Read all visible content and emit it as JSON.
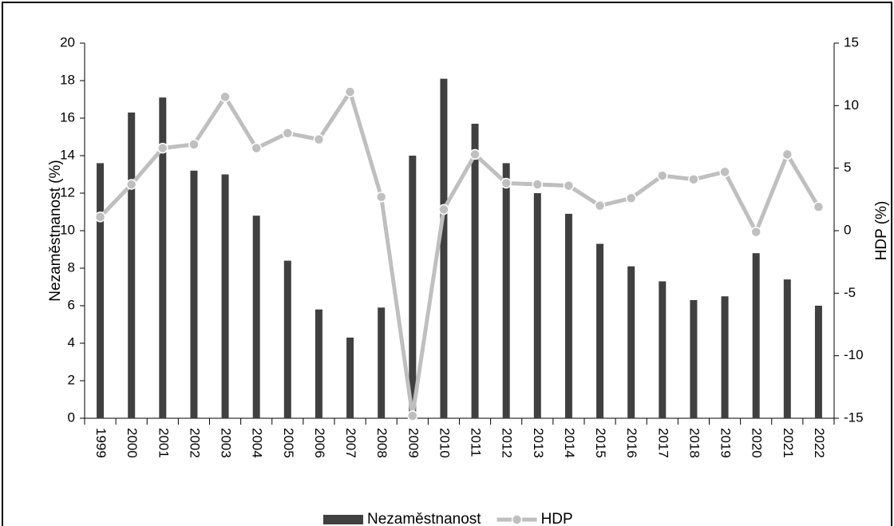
{
  "chart_data": {
    "type": "bar",
    "categories": [
      "1999",
      "2000",
      "2001",
      "2002",
      "2003",
      "2004",
      "2005",
      "2006",
      "2007",
      "2008",
      "2009",
      "2010",
      "2011",
      "2012",
      "2013",
      "2014",
      "2015",
      "2016",
      "2017",
      "2018",
      "2019",
      "2020",
      "2021",
      "2022"
    ],
    "series": [
      {
        "name": "Nezaměstnanost",
        "type": "bar",
        "color": "#404040",
        "values": [
          13.6,
          16.3,
          17.1,
          13.2,
          13.0,
          10.8,
          8.4,
          5.8,
          4.3,
          5.9,
          14.0,
          18.1,
          15.7,
          13.6,
          12.0,
          10.9,
          9.3,
          8.1,
          7.3,
          6.3,
          6.5,
          8.8,
          7.4,
          6.0
        ]
      },
      {
        "name": "HDP",
        "type": "line",
        "axis": "y2",
        "color": "#bfbfbf",
        "values": [
          1.1,
          3.7,
          6.6,
          6.9,
          10.7,
          6.6,
          7.8,
          7.3,
          11.1,
          2.7,
          -14.8,
          1.7,
          6.1,
          3.8,
          3.7,
          3.6,
          2.0,
          2.6,
          4.4,
          4.1,
          4.7,
          -0.1,
          6.1,
          1.9
        ]
      }
    ],
    "y_label": "Nezaměstnanost (%)",
    "y2_label": "HDP (%)",
    "ylim": [
      0,
      20
    ],
    "yticks": [
      0,
      2,
      4,
      6,
      8,
      10,
      12,
      14,
      16,
      18,
      20
    ],
    "y2lim": [
      -15,
      15
    ],
    "y2ticks": [
      -15,
      -10,
      -5,
      0,
      5,
      10,
      15
    ],
    "grid": false,
    "legend": "bottom"
  }
}
